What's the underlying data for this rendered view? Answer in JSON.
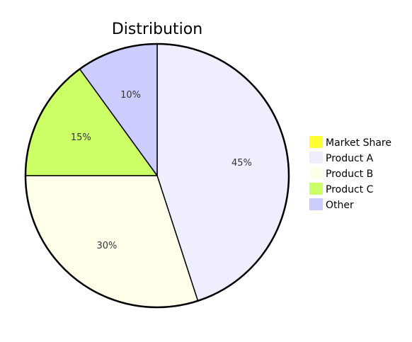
{
  "chart_data": {
    "type": "pie",
    "title": "Distribution",
    "categories": [
      "Product A",
      "Product B",
      "Product C",
      "Other"
    ],
    "values": [
      45,
      30,
      15,
      10
    ],
    "value_labels": [
      "45%",
      "30%",
      "15%",
      "10%"
    ],
    "colors": [
      "#eeeeff",
      "#ffffea",
      "#ccff66",
      "#ccccff"
    ],
    "legend": {
      "placement": "right",
      "entries": [
        {
          "label": "Market Share",
          "color": "#ffff33"
        },
        {
          "label": "Product A",
          "color": "#eeeeff"
        },
        {
          "label": "Product B",
          "color": "#ffffea"
        },
        {
          "label": "Product C",
          "color": "#ccff66"
        },
        {
          "label": "Other",
          "color": "#ccccff"
        }
      ]
    },
    "start_angle_deg": 0,
    "direction": "clockwise"
  }
}
